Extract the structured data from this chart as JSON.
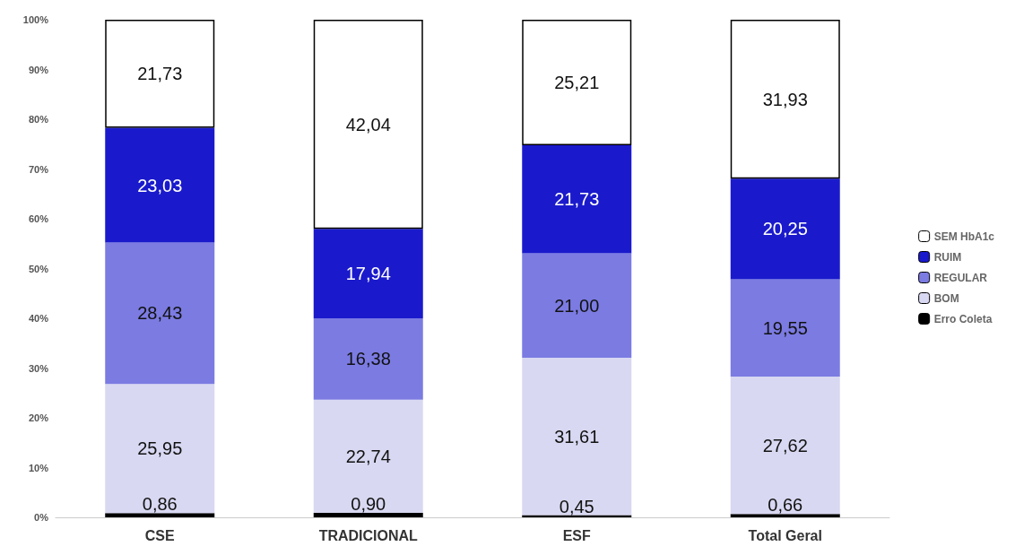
{
  "chart_data": {
    "type": "bar",
    "stacked": true,
    "categories": [
      "CSE",
      "TRADICIONAL",
      "ESF",
      "Total Geral"
    ],
    "series": [
      {
        "name": "Erro Coleta",
        "color": "#000000",
        "values": [
          0.86,
          0.9,
          0.45,
          0.66
        ],
        "value_labels": [
          "0,86",
          "0,90",
          "0,45",
          "0,66"
        ]
      },
      {
        "name": "BOM",
        "color": "#d8d8f2",
        "values": [
          25.95,
          22.74,
          31.61,
          27.62
        ],
        "value_labels": [
          "25,95",
          "22,74",
          "31,61",
          "27,62"
        ]
      },
      {
        "name": "REGULAR",
        "color": "#7b7be2",
        "values": [
          28.43,
          16.38,
          21.0,
          19.55
        ],
        "value_labels": [
          "28,43",
          "16,38",
          "21,00",
          "19,55"
        ]
      },
      {
        "name": "RUIM",
        "color": "#1a1acc",
        "values": [
          23.03,
          17.94,
          21.73,
          20.25
        ],
        "value_labels": [
          "23,03",
          "17,94",
          "21,73",
          "20,25"
        ]
      },
      {
        "name": "SEM HbA1c",
        "color": "#ffffff",
        "values": [
          21.73,
          42.04,
          25.21,
          31.93
        ],
        "value_labels": [
          "21,73",
          "42,04",
          "25,21",
          "31,93"
        ]
      }
    ],
    "ylim": [
      0,
      100
    ],
    "yticks": [
      {
        "value": 0,
        "label": "0%"
      },
      {
        "value": 10,
        "label": "10%"
      },
      {
        "value": 20,
        "label": "20%"
      },
      {
        "value": 30,
        "label": "30%"
      },
      {
        "value": 40,
        "label": "40%"
      },
      {
        "value": 50,
        "label": "50%"
      },
      {
        "value": 60,
        "label": "60%"
      },
      {
        "value": 70,
        "label": "70%"
      },
      {
        "value": 80,
        "label": "80%"
      },
      {
        "value": 90,
        "label": "90%"
      },
      {
        "value": 100,
        "label": "100%"
      }
    ],
    "grid": false,
    "legend": "right"
  }
}
